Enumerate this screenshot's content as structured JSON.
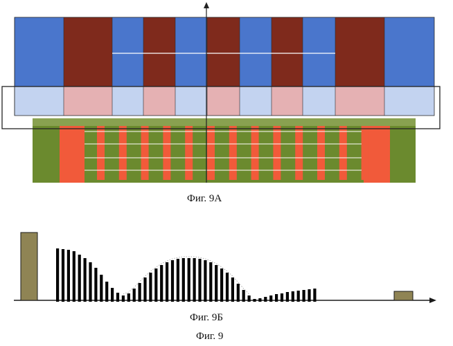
{
  "captions": {
    "fig_a": "Фиг. 9А",
    "fig_b": "Фиг. 9Б",
    "fig": "Фиг. 9"
  },
  "colors": {
    "blue": "#4a76cc",
    "blue_light": "#c3d3f0",
    "red": "#7f2a1c",
    "red_light": "#e5b1b3",
    "green": "#6b8a2e",
    "orange": "#f15a3a",
    "bar": "#000000",
    "olive": "#8f8454",
    "outline": "#222222"
  },
  "fig_a": {
    "stripe_pattern": [
      "blue",
      "red",
      "blue",
      "red",
      "blue",
      "red",
      "blue",
      "red",
      "blue",
      "red",
      "blue"
    ]
  },
  "fig_b": {
    "bar_heights": [
      0.75,
      0.74,
      0.73,
      0.71,
      0.66,
      0.61,
      0.55,
      0.47,
      0.37,
      0.27,
      0.18,
      0.11,
      0.07,
      0.1,
      0.17,
      0.25,
      0.33,
      0.4,
      0.46,
      0.51,
      0.55,
      0.58,
      0.6,
      0.61,
      0.61,
      0.61,
      0.6,
      0.58,
      0.55,
      0.51,
      0.46,
      0.4,
      0.33,
      0.24,
      0.15,
      0.07,
      0.02,
      0.03,
      0.05,
      0.07,
      0.09,
      0.1,
      0.12,
      0.13,
      0.14,
      0.15,
      0.16,
      0.17
    ],
    "end_bar_left": 0.98,
    "end_bar_right": 0.13
  }
}
